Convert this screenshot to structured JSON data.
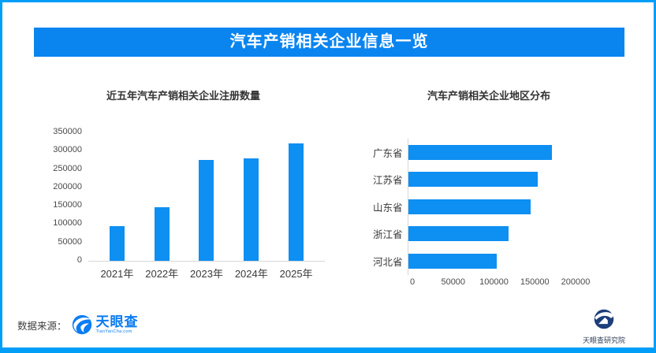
{
  "page": {
    "title": "汽车产销相关企业信息一览",
    "banner_color": "#0a85f0",
    "frame_color": "#019ef8",
    "bar_color": "#0e8ff2"
  },
  "footer": {
    "source_label": "数据来源：",
    "source_logo_text": "天眼查",
    "source_logo_sub": "TianYanCha.com",
    "institute_logo_text": "天眼查研究院"
  },
  "chart_data": [
    {
      "type": "bar",
      "orientation": "vertical",
      "title": "近五年汽车产销相关企业注册数量",
      "categories": [
        "2021年",
        "2022年",
        "2023年",
        "2024年",
        "2025年"
      ],
      "values": [
        95000,
        146000,
        274000,
        279000,
        320000
      ],
      "ylim": [
        0,
        350000
      ],
      "ytick_step": 50000,
      "grid": false,
      "legend": "none",
      "bar_color": "#0e8ff2"
    },
    {
      "type": "bar",
      "orientation": "horizontal",
      "title": "汽车产销相关企业地区分布",
      "categories": [
        "广东省",
        "江苏省",
        "山东省",
        "浙江省",
        "河北省"
      ],
      "values": [
        176000,
        158000,
        150000,
        123000,
        108000
      ],
      "xlim": [
        0,
        200000
      ],
      "xtick_step": 50000,
      "grid": false,
      "legend": "none",
      "bar_color": "#0e8ff2"
    }
  ]
}
